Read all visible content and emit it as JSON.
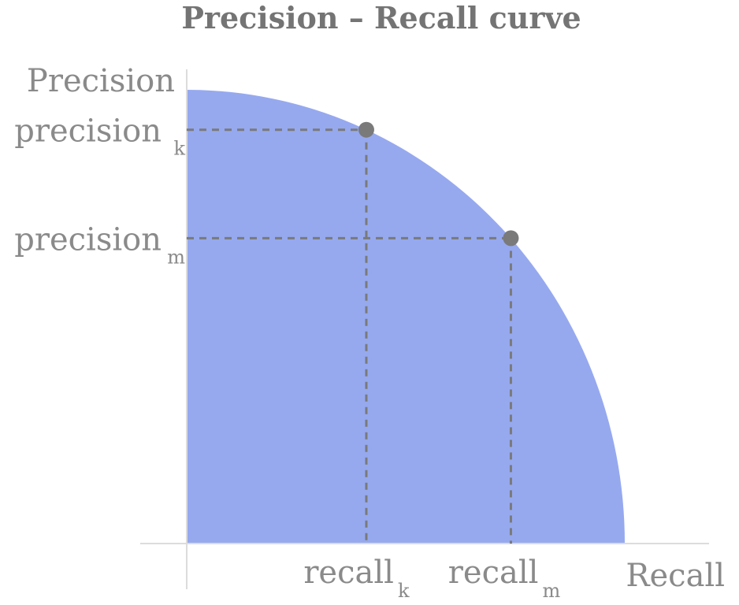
{
  "chart_data": {
    "type": "area",
    "title": "Precision – Recall curve",
    "xlabel": "Recall",
    "ylabel": "Precision",
    "fill_color": "#96a9ef",
    "guide_color": "#7a7a7a",
    "curve": {
      "shape": "quarter-ellipse",
      "x": [
        0,
        0.2,
        0.4,
        0.6,
        0.8,
        0.9,
        1.0
      ],
      "y": [
        1.0,
        0.98,
        0.917,
        0.8,
        0.6,
        0.436,
        0
      ]
    },
    "points": [
      {
        "label": "recall",
        "label_sub": "k",
        "y_label": "precision",
        "y_label_sub": "k",
        "x": 0.41,
        "y": 0.912
      },
      {
        "label": "recall",
        "label_sub": "m",
        "x_label": "recall",
        "y_label": "precision",
        "y_label_sub": "m",
        "x": 0.74,
        "y": 0.673
      }
    ],
    "xlim": [
      0,
      1
    ],
    "ylim": [
      0,
      1
    ],
    "grid": false,
    "legend": "none"
  }
}
